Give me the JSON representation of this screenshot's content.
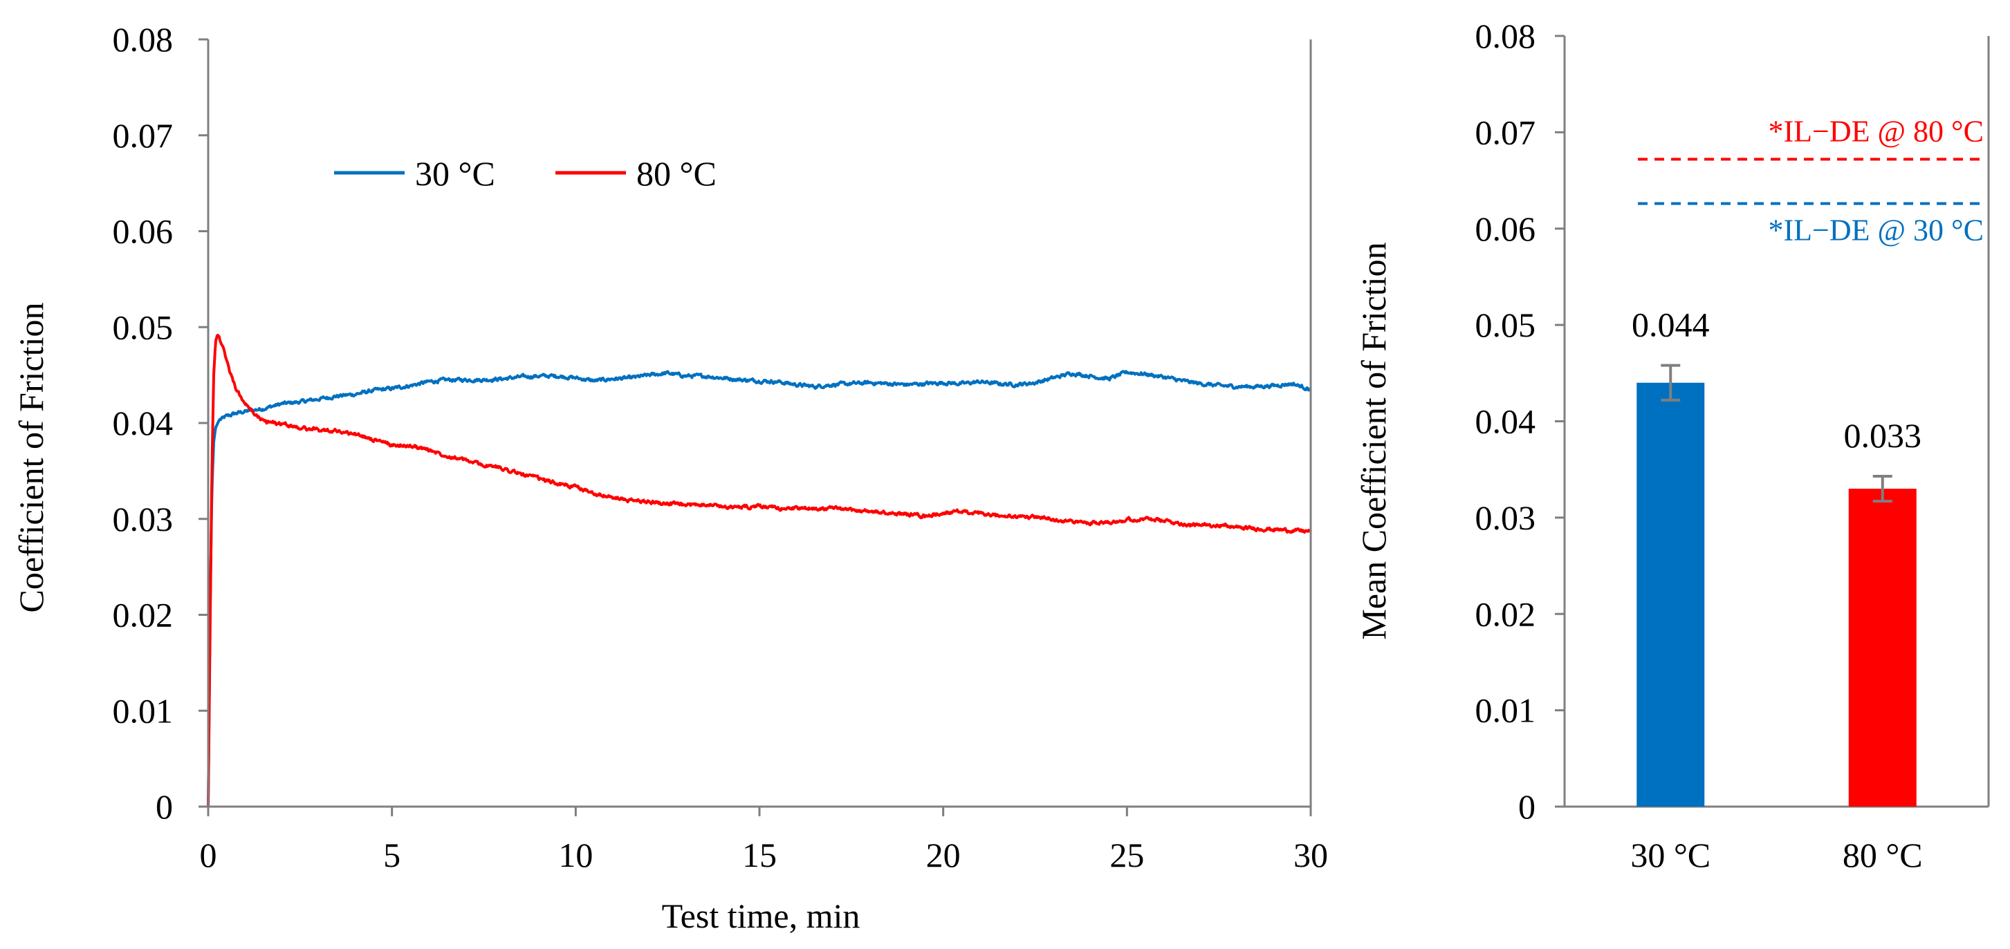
{
  "chart_data": [
    {
      "type": "line",
      "xlabel": "Test time, min",
      "ylabel": "Coefficient of Friction",
      "xlim": [
        0,
        30
      ],
      "ylim": [
        0,
        0.08
      ],
      "xticks": [
        "0",
        "5",
        "10",
        "15",
        "20",
        "25",
        "30"
      ],
      "yticks": [
        "0",
        "0.01",
        "0.02",
        "0.03",
        "0.04",
        "0.05",
        "0.06",
        "0.07",
        "0.08"
      ],
      "grid": false,
      "legend_position": "top-left",
      "series": [
        {
          "name": "30 °C",
          "color": "#0070c0",
          "x": [
            0,
            0.05,
            0.1,
            0.15,
            0.2,
            0.3,
            0.5,
            0.75,
            1,
            1.5,
            2,
            2.5,
            3,
            3.5,
            4,
            4.5,
            5,
            5.5,
            6,
            6.5,
            7,
            7.5,
            8,
            8.5,
            9,
            9.5,
            10,
            10.5,
            11,
            11.5,
            12,
            12.5,
            13,
            13.5,
            14,
            14.5,
            15,
            15.5,
            16,
            16.5,
            17,
            17.5,
            18,
            18.5,
            19,
            19.5,
            20,
            20.5,
            21,
            21.5,
            22,
            22.5,
            23,
            23.5,
            24,
            24.5,
            25,
            25.5,
            26,
            26.5,
            27,
            27.5,
            28,
            28.5,
            29,
            29.5,
            30
          ],
          "values": [
            0,
            0.02,
            0.033,
            0.038,
            0.0395,
            0.0403,
            0.0407,
            0.041,
            0.0412,
            0.0415,
            0.042,
            0.0422,
            0.0425,
            0.0428,
            0.043,
            0.0434,
            0.0436,
            0.0439,
            0.0443,
            0.0445,
            0.0445,
            0.0445,
            0.0446,
            0.0448,
            0.0449,
            0.0449,
            0.0447,
            0.0444,
            0.0446,
            0.0447,
            0.045,
            0.0452,
            0.0449,
            0.0449,
            0.0447,
            0.0445,
            0.0444,
            0.0443,
            0.044,
            0.0438,
            0.044,
            0.0441,
            0.0442,
            0.0441,
            0.044,
            0.0441,
            0.0442,
            0.0441,
            0.0443,
            0.0441,
            0.044,
            0.0442,
            0.0447,
            0.0452,
            0.0449,
            0.0446,
            0.0453,
            0.0451,
            0.0448,
            0.0444,
            0.0441,
            0.0439,
            0.0438,
            0.0438,
            0.0439,
            0.0441,
            0.0435
          ]
        },
        {
          "name": "80 °C",
          "color": "#ff0000",
          "x": [
            0,
            0.05,
            0.1,
            0.15,
            0.2,
            0.25,
            0.3,
            0.4,
            0.5,
            0.6,
            0.75,
            1,
            1.25,
            1.5,
            2,
            2.5,
            3,
            3.5,
            4,
            4.5,
            5,
            5.5,
            6,
            6.5,
            7,
            7.5,
            8,
            8.5,
            9,
            9.5,
            10,
            10.5,
            11,
            11.5,
            12,
            12.5,
            13,
            13.5,
            14,
            14.5,
            15,
            15.5,
            16,
            16.5,
            17,
            17.5,
            18,
            18.5,
            19,
            19.5,
            20,
            20.5,
            21,
            21.5,
            22,
            22.5,
            23,
            23.5,
            24,
            24.5,
            25,
            25.5,
            26,
            26.5,
            27,
            27.5,
            28,
            28.5,
            29,
            29.5,
            30
          ],
          "values": [
            0,
            0.018,
            0.035,
            0.045,
            0.0485,
            0.0492,
            0.049,
            0.0478,
            0.0465,
            0.0452,
            0.0436,
            0.042,
            0.041,
            0.0402,
            0.0399,
            0.0395,
            0.0393,
            0.0392,
            0.0388,
            0.0383,
            0.0377,
            0.0376,
            0.0372,
            0.0366,
            0.0361,
            0.0356,
            0.0353,
            0.0347,
            0.0342,
            0.0337,
            0.0333,
            0.0327,
            0.0322,
            0.0319,
            0.0318,
            0.0316,
            0.0314,
            0.0316,
            0.0313,
            0.0312,
            0.0313,
            0.0311,
            0.0311,
            0.0311,
            0.0311,
            0.0309,
            0.0308,
            0.0306,
            0.0305,
            0.0303,
            0.0306,
            0.0308,
            0.0305,
            0.0303,
            0.0302,
            0.0302,
            0.03,
            0.0297,
            0.0296,
            0.0297,
            0.0299,
            0.03,
            0.0298,
            0.0295,
            0.0293,
            0.0294,
            0.0291,
            0.029,
            0.0289,
            0.0288,
            0.0287
          ]
        }
      ]
    },
    {
      "type": "bar",
      "xlabel": "",
      "ylabel": "Mean Coefficient of Friction",
      "ylim": [
        0,
        0.08
      ],
      "yticks": [
        "0",
        "0.01",
        "0.02",
        "0.03",
        "0.04",
        "0.05",
        "0.06",
        "0.07",
        "0.08"
      ],
      "grid": false,
      "categories": [
        "30 °C",
        "80 °C"
      ],
      "values": [
        0.044,
        0.033
      ],
      "errors": [
        0.0018,
        0.0013
      ],
      "colors": [
        "#0070c0",
        "#ff0000"
      ],
      "data_labels": [
        "0.044",
        "0.033"
      ],
      "reference_lines": [
        {
          "label": "*IL−DE @ 80 °C",
          "value": 0.0672,
          "color": "#ff0000",
          "style": "dashed"
        },
        {
          "label": "*IL−DE @ 30 °C",
          "value": 0.0626,
          "color": "#0070c0",
          "style": "dashed"
        }
      ]
    }
  ]
}
